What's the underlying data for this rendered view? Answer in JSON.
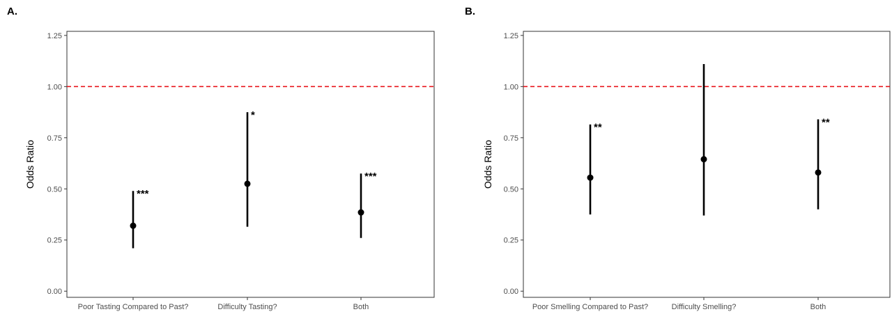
{
  "chart_data": [
    {
      "type": "scatter",
      "panel_label": "A.",
      "ylabel": "Odds Ratio",
      "ylim": [
        -0.03,
        1.27
      ],
      "yticks": [
        "0.00",
        "0.25",
        "0.50",
        "0.75",
        "1.00",
        "1.25"
      ],
      "reference_line": {
        "y": 1.0,
        "color": "#e8141c",
        "style": "dashed"
      },
      "categories": [
        "Poor Tasting Compared to Past?",
        "Difficulty Tasting?",
        "Both"
      ],
      "points": [
        {
          "category": "Poor Tasting Compared to Past?",
          "estimate": 0.32,
          "lower": 0.21,
          "upper": 0.49,
          "significance": "***"
        },
        {
          "category": "Difficulty Tasting?",
          "estimate": 0.525,
          "lower": 0.315,
          "upper": 0.875,
          "significance": "*"
        },
        {
          "category": "Both",
          "estimate": 0.385,
          "lower": 0.26,
          "upper": 0.575,
          "significance": "***"
        }
      ],
      "grid": false
    },
    {
      "type": "scatter",
      "panel_label": "B.",
      "ylabel": "Odds Ratio",
      "ylim": [
        -0.03,
        1.27
      ],
      "yticks": [
        "0.00",
        "0.25",
        "0.50",
        "0.75",
        "1.00",
        "1.25"
      ],
      "reference_line": {
        "y": 1.0,
        "color": "#e8141c",
        "style": "dashed"
      },
      "categories": [
        "Poor Smelling Compared to Past?",
        "Difficulty Smelling?",
        "Both"
      ],
      "points": [
        {
          "category": "Poor Smelling Compared to Past?",
          "estimate": 0.555,
          "lower": 0.375,
          "upper": 0.815,
          "significance": "**"
        },
        {
          "category": "Difficulty Smelling?",
          "estimate": 0.645,
          "lower": 0.37,
          "upper": 1.11,
          "significance": ""
        },
        {
          "category": "Both",
          "estimate": 0.58,
          "lower": 0.4,
          "upper": 0.84,
          "significance": "**"
        }
      ],
      "grid": false
    }
  ]
}
